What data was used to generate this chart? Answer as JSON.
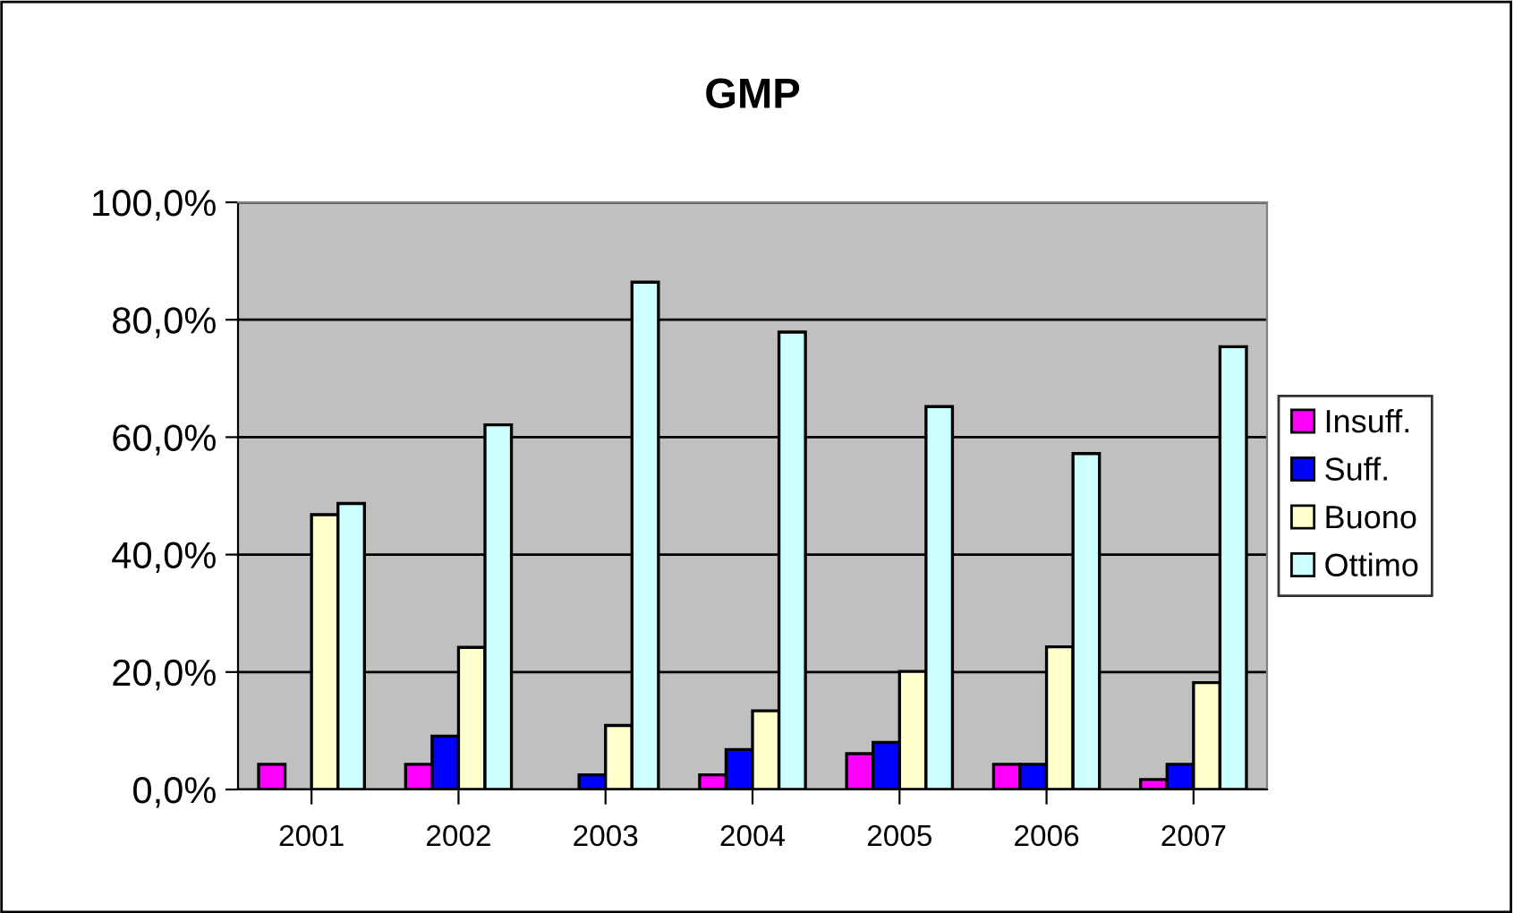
{
  "chart_data": {
    "type": "bar",
    "title": "GMP",
    "categories": [
      "2001",
      "2002",
      "2003",
      "2004",
      "2005",
      "2006",
      "2007"
    ],
    "series": [
      {
        "name": "Insuff.",
        "color": "#ff00ff",
        "values": [
          4.3,
          4.3,
          null,
          2.5,
          6.1,
          4.3,
          1.7
        ]
      },
      {
        "name": "Suff.",
        "color": "#0000ff",
        "values": [
          null,
          9.1,
          2.5,
          6.8,
          8.0,
          4.3,
          4.3
        ]
      },
      {
        "name": "Buono",
        "color": "#ffffcc",
        "values": [
          46.8,
          24.2,
          10.9,
          13.4,
          20.1,
          24.3,
          18.2
        ]
      },
      {
        "name": "Ottimo",
        "color": "#ccffff",
        "values": [
          48.7,
          62.1,
          86.4,
          77.9,
          65.2,
          57.2,
          75.4
        ]
      }
    ],
    "ylim": [
      0,
      100
    ],
    "yticks": [
      {
        "value": 0,
        "label": "0,0%"
      },
      {
        "value": 20,
        "label": "20,0%"
      },
      {
        "value": 40,
        "label": "40,0%"
      },
      {
        "value": 60,
        "label": "60,0%"
      },
      {
        "value": 80,
        "label": "80,0%"
      },
      {
        "value": 100,
        "label": "100,0%"
      }
    ],
    "grid": "y",
    "legend": "right"
  }
}
